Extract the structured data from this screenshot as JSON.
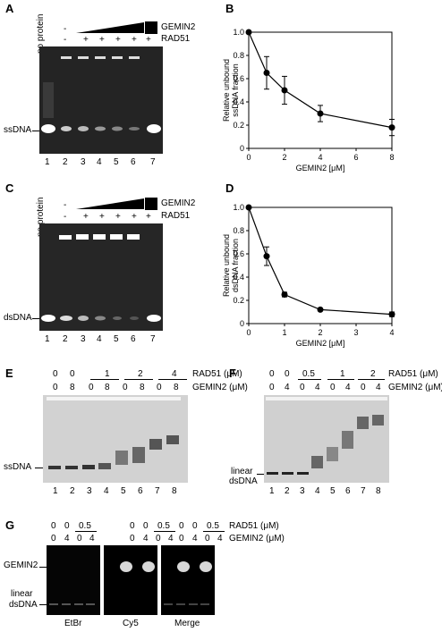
{
  "panels": {
    "A": {
      "letter": "A",
      "no_protein": "no protein",
      "gemin2": "GEMIN2",
      "rad51": "RAD51",
      "row_gemin": [
        "-",
        "",
        "",
        "",
        "",
        ""
      ],
      "row_rad": [
        "-",
        "+",
        "+",
        "+",
        "+",
        "+",
        "-"
      ],
      "band": "ssDNA",
      "lanes": [
        "1",
        "2",
        "3",
        "4",
        "5",
        "6",
        "7"
      ]
    },
    "B": {
      "letter": "B",
      "chart_data": {
        "type": "line",
        "x": [
          0,
          1,
          2,
          4,
          8
        ],
        "y": [
          1.0,
          0.65,
          0.5,
          0.3,
          0.18
        ],
        "yerr": [
          0,
          0.14,
          0.12,
          0.07,
          0.07
        ],
        "xlabel": "GEMIN2 [μM]",
        "ylabel": "Relative unbound ssDNA fraction",
        "xlim": [
          0,
          8
        ],
        "ylim": [
          0,
          1.0
        ],
        "xticks": [
          "0",
          "2",
          "4",
          "6",
          "8"
        ],
        "yticks": [
          "0",
          "0.2",
          "0.4",
          "0.6",
          "0.8",
          "1.0"
        ]
      }
    },
    "C": {
      "letter": "C",
      "no_protein": "no protein",
      "gemin2": "GEMIN2",
      "rad51": "RAD51",
      "row_gemin": [
        "-"
      ],
      "row_rad": [
        "-",
        "+",
        "+",
        "+",
        "+",
        "+",
        "-"
      ],
      "band": "dsDNA",
      "lanes": [
        "1",
        "2",
        "3",
        "4",
        "5",
        "6",
        "7"
      ]
    },
    "D": {
      "letter": "D",
      "chart_data": {
        "type": "line",
        "x": [
          0,
          0.5,
          1,
          2,
          4
        ],
        "y": [
          1.0,
          0.58,
          0.25,
          0.12,
          0.08
        ],
        "yerr": [
          0,
          0.08,
          0.02,
          0.01,
          0.02
        ],
        "xlabel": "GEMIN2 [μM]",
        "ylabel": "Relative unbound dsDNA fraction",
        "xlim": [
          0,
          4
        ],
        "ylim": [
          0,
          1.0
        ],
        "xticks": [
          "0",
          "1",
          "2",
          "3",
          "4"
        ],
        "yticks": [
          "0",
          "0.2",
          "0.4",
          "0.6",
          "0.8",
          "1.0"
        ]
      }
    },
    "E": {
      "letter": "E",
      "rad51_vals": [
        "0",
        "0",
        "1",
        "2",
        "4"
      ],
      "gemin_vals": [
        "0",
        "8",
        "0",
        "8",
        "0",
        "8",
        "0",
        "8"
      ],
      "rad51": "RAD51 (μM)",
      "gemin2": "GEMIN2 (μM)",
      "band": "ssDNA",
      "lanes": [
        "1",
        "2",
        "3",
        "4",
        "5",
        "6",
        "7",
        "8"
      ]
    },
    "F": {
      "letter": "F",
      "rad51_vals": [
        "0",
        "0",
        "0.5",
        "1",
        "2"
      ],
      "gemin_vals": [
        "0",
        "4",
        "0",
        "4",
        "0",
        "4",
        "0",
        "4"
      ],
      "rad51": "RAD51 (μM)",
      "gemin2": "GEMIN2 (μM)",
      "band1": "linear",
      "band2": "dsDNA",
      "lanes": [
        "1",
        "2",
        "3",
        "4",
        "5",
        "6",
        "7",
        "8"
      ]
    },
    "G": {
      "letter": "G",
      "rad51_vals": [
        "0",
        "0",
        "0.5"
      ],
      "gemin_vals": [
        "0",
        "4",
        "0",
        "4"
      ],
      "rad51": "RAD51 (μM)",
      "gemin2": "GEMIN2 (μM)",
      "band_gemin": "GEMIN2",
      "band1": "linear",
      "band2": "dsDNA",
      "stains": [
        "EtBr",
        "Cy5",
        "Merge"
      ]
    }
  }
}
